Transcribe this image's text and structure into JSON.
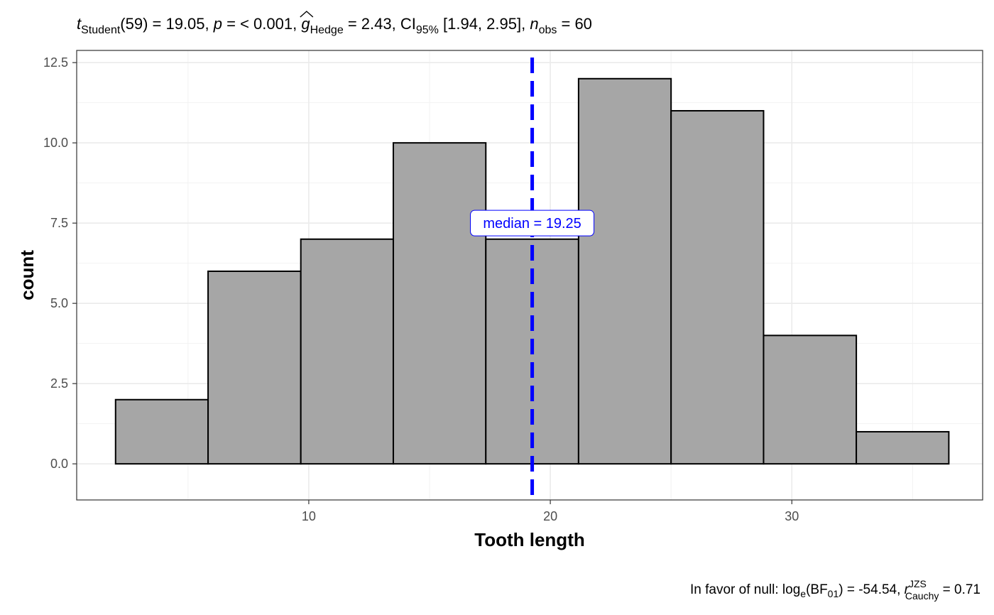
{
  "chart_data": {
    "type": "bar",
    "subtitle": {
      "parts": [
        {
          "italic": "t",
          "sub": "Student",
          "text": "(59) = 19.05, "
        },
        {
          "italic": "p",
          "text": " = < 0.001, "
        },
        {
          "italic": "g",
          "hat": true,
          "sub": "Hedge",
          "text": " = 2.43, CI"
        },
        {
          "sub": "95%",
          "text": " [1.94, 2.95], "
        },
        {
          "italic": "n",
          "sub": "obs",
          "text": " = 60"
        }
      ]
    },
    "caption": {
      "prefix": "In favor of null: log",
      "log_sub": "e",
      "bf": "(BF",
      "bf_sub": "01",
      "mid": ") = -54.54, ",
      "r": "r",
      "r_sup": "JZS",
      "r_sub": "Cauchy",
      "suffix": " = 0.71"
    },
    "xlabel": "Tooth length",
    "ylabel": "count",
    "xlim": [
      0.39,
      37.9
    ],
    "ylim": [
      -1.125,
      12.88
    ],
    "xticks": [
      10,
      20,
      30
    ],
    "xtick_labels": [
      "10",
      "20",
      "30"
    ],
    "yticks": [
      0,
      2.5,
      5,
      7.5,
      10,
      12.5
    ],
    "ytick_labels": [
      "0.0",
      "2.5",
      "5.0",
      "7.5",
      "10.0",
      "12.5"
    ],
    "bins": [
      {
        "x0": 2.0,
        "x1": 5.83,
        "count": 2
      },
      {
        "x0": 5.83,
        "x1": 9.67,
        "count": 6
      },
      {
        "x0": 9.67,
        "x1": 13.5,
        "count": 7
      },
      {
        "x0": 13.5,
        "x1": 17.33,
        "count": 10
      },
      {
        "x0": 17.33,
        "x1": 21.17,
        "count": 7
      },
      {
        "x0": 21.17,
        "x1": 25.0,
        "count": 12
      },
      {
        "x0": 25.0,
        "x1": 28.83,
        "count": 11
      },
      {
        "x0": 28.83,
        "x1": 32.67,
        "count": 4
      },
      {
        "x0": 32.67,
        "x1": 36.5,
        "count": 1
      }
    ],
    "median": {
      "value": 19.25,
      "label": "median = 19.25",
      "label_y": 7.5,
      "color": "#0000ff"
    },
    "bar_fill": "#a6a6a6",
    "bar_stroke": "#000000",
    "grid": true
  }
}
